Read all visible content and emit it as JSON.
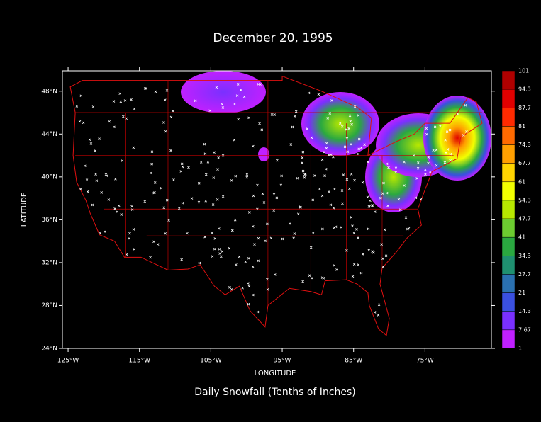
{
  "map": {
    "title": "December 20, 1995",
    "caption": "Daily Snowfall (Tenths of Inches)",
    "xlabel": "LONGITUDE",
    "ylabel": "LATITUDE",
    "xlim": [
      -125.8,
      -65.7
    ],
    "ylim": [
      24,
      49.9
    ],
    "xticks": [
      {
        "value": -125,
        "label": "125°W"
      },
      {
        "value": -115,
        "label": "115°W"
      },
      {
        "value": -105,
        "label": "105°W"
      },
      {
        "value": -95,
        "label": "95°W"
      },
      {
        "value": -85,
        "label": "85°W"
      },
      {
        "value": -75,
        "label": "75°W"
      }
    ],
    "yticks": [
      {
        "value": 24,
        "label": "24°N"
      },
      {
        "value": 28,
        "label": "28°N"
      },
      {
        "value": 32,
        "label": "32°N"
      },
      {
        "value": 36,
        "label": "36°N"
      },
      {
        "value": 40,
        "label": "40°N"
      },
      {
        "value": 44,
        "label": "44°N"
      },
      {
        "value": 48,
        "label": "48°N"
      }
    ],
    "colorbar": {
      "levels": [
        101,
        94.3,
        87.7,
        81,
        74.3,
        67.7,
        61,
        54.3,
        47.7,
        41,
        34.3,
        27.7,
        21,
        14.3,
        7.67,
        1
      ],
      "colors": [
        "#b00000",
        "#e00000",
        "#ff2a00",
        "#ff6a00",
        "#ff9f00",
        "#ffd400",
        "#f2ff00",
        "#b8e800",
        "#6ccc30",
        "#2aa840",
        "#1f9070",
        "#2a70b0",
        "#3a50e0",
        "#7a30ff",
        "#c020ff"
      ]
    }
  }
}
